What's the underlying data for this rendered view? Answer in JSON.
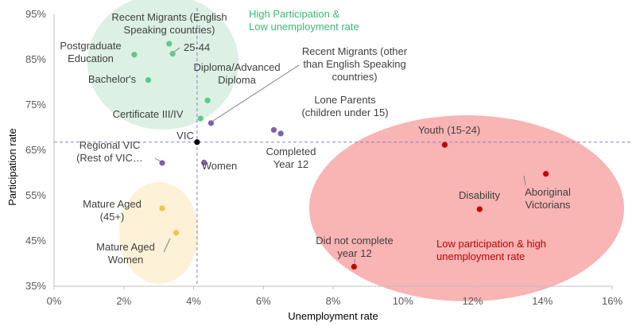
{
  "chart_data": {
    "type": "scatter",
    "title": "",
    "xlabel": "Unemployment rate",
    "ylabel": "Participation rate",
    "xlim": [
      0,
      16
    ],
    "ylim": [
      35,
      95
    ],
    "x_ticks": [
      "0%",
      "2%",
      "4%",
      "6%",
      "8%",
      "10%",
      "12%",
      "14%",
      "16%"
    ],
    "y_ticks": [
      "35%",
      "45%",
      "55%",
      "65%",
      "75%",
      "85%",
      "95%"
    ],
    "reference_lines": {
      "x": 4.1,
      "y": 66.8
    },
    "regions": [
      {
        "name": "high-participation-low-unemployment",
        "label": [
          "High Participation &",
          "Low unemployment rate"
        ],
        "color": "#dcf0e3",
        "label_color": "#3cb878"
      },
      {
        "name": "low-participation-high-unemployment",
        "label": [
          "Low participation & high",
          "unemployment rate"
        ],
        "color": "#f9b4b4",
        "label_color": "#c00000"
      },
      {
        "name": "mature-aged",
        "label": [],
        "color": "#fdf1d8",
        "label_color": ""
      }
    ],
    "points": [
      {
        "label": [
          "Recent Migrants (English",
          "Speaking countries)"
        ],
        "x": 3.3,
        "y": 88.5,
        "color": "#5cc98d"
      },
      {
        "label": [
          "25-44"
        ],
        "x": 3.4,
        "y": 86.3,
        "color": "#5cc98d"
      },
      {
        "label": [
          "Postgraduate",
          "Education"
        ],
        "x": 2.3,
        "y": 86.1,
        "color": "#5cc98d"
      },
      {
        "label": [
          "Bachelor's"
        ],
        "x": 2.7,
        "y": 80.5,
        "color": "#5cc98d"
      },
      {
        "label": [
          "Diploma/Advanced",
          "Diploma"
        ],
        "x": 4.4,
        "y": 76.0,
        "color": "#5cc98d"
      },
      {
        "label": [
          "Certificate III/IV"
        ],
        "x": 4.2,
        "y": 72.0,
        "color": "#5cc98d"
      },
      {
        "label": [
          "Recent Migrants (other",
          "than English Speaking",
          "countries)"
        ],
        "x": 4.5,
        "y": 71.0,
        "color": "#7f5fb0"
      },
      {
        "label": [
          "Lone Parents",
          "(children under 15)"
        ],
        "x": 6.3,
        "y": 69.5,
        "color": "#7f5fb0"
      },
      {
        "label": [
          "Completed",
          "Year 12"
        ],
        "x": 6.5,
        "y": 68.7,
        "color": "#7f5fb0"
      },
      {
        "label": [
          "VIC"
        ],
        "x": 4.1,
        "y": 66.8,
        "color": "#000000"
      },
      {
        "label": [
          "Regional VIC",
          "(Rest of VIC…"
        ],
        "x": 3.1,
        "y": 62.2,
        "color": "#7f5fb0"
      },
      {
        "label": [
          "Women"
        ],
        "x": 4.3,
        "y": 62.3,
        "color": "#7f5fb0"
      },
      {
        "label": [
          "Youth (15-24)"
        ],
        "x": 11.2,
        "y": 66.2,
        "color": "#c00000"
      },
      {
        "label": [
          "Aboriginal",
          "Victorians"
        ],
        "x": 14.1,
        "y": 59.8,
        "color": "#c00000"
      },
      {
        "label": [
          "Disability"
        ],
        "x": 12.2,
        "y": 52.0,
        "color": "#c00000"
      },
      {
        "label": [
          "Did not complete",
          "year 12"
        ],
        "x": 8.6,
        "y": 39.3,
        "color": "#c00000"
      },
      {
        "label": [
          "Mature Aged",
          "(45+)"
        ],
        "x": 3.1,
        "y": 52.2,
        "color": "#f5c242"
      },
      {
        "label": [
          "Mature Aged",
          "Women"
        ],
        "x": 3.5,
        "y": 46.8,
        "color": "#f5c242"
      }
    ]
  }
}
